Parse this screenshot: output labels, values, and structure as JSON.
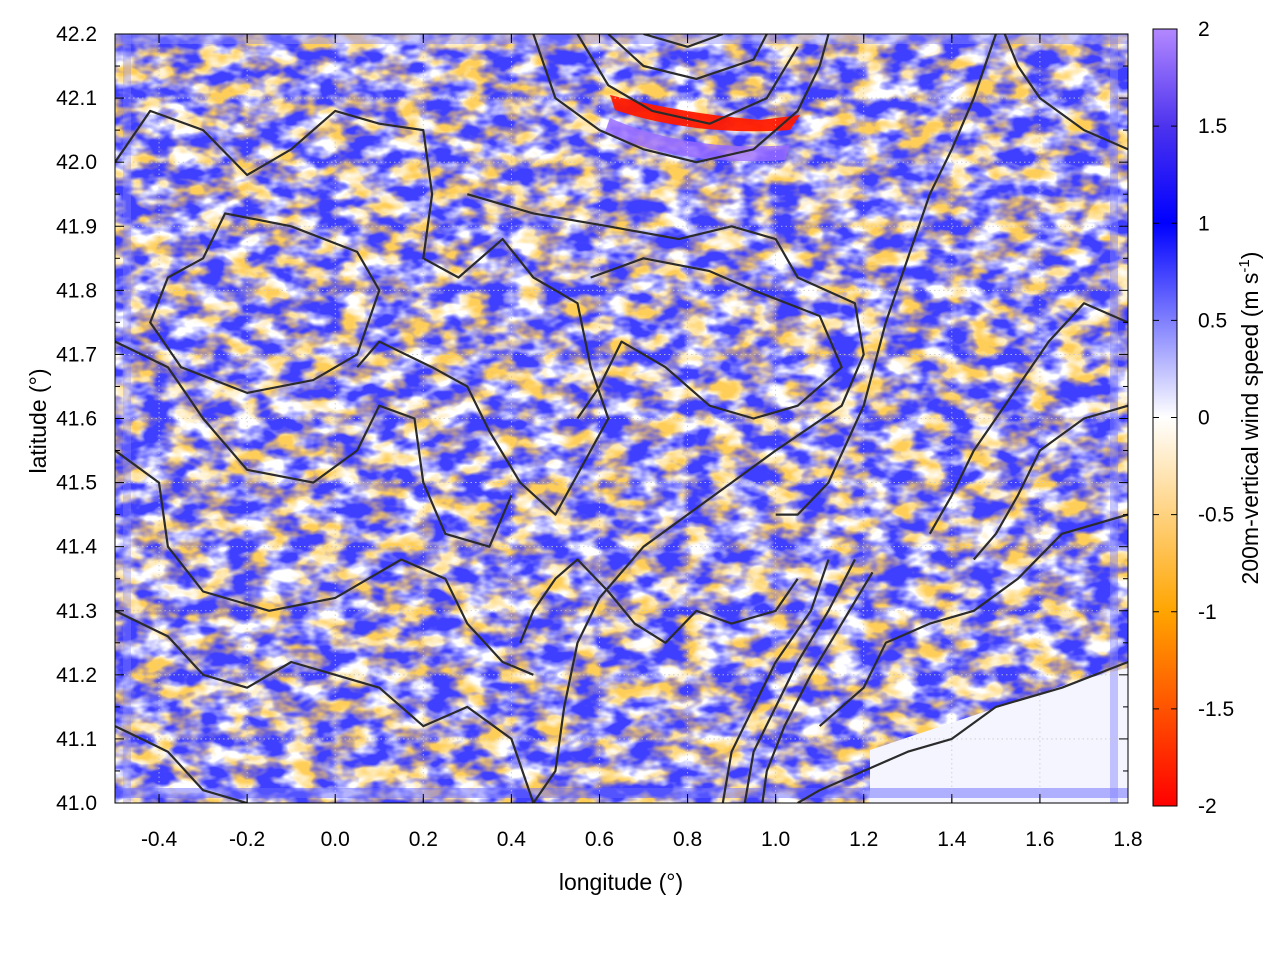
{
  "chart_data": {
    "type": "heatmap",
    "xlabel": "longitude (°)",
    "ylabel": "latitude (°)",
    "colorbar_label": "200m-vertical wind speed (m s",
    "colorbar_label_sup": "-1",
    "colorbar_label_close": ")",
    "xlim": [
      -0.5,
      1.8
    ],
    "ylim": [
      41.0,
      42.2
    ],
    "xticks": [
      -0.4,
      -0.2,
      0.0,
      0.2,
      0.4,
      0.6,
      0.8,
      1.0,
      1.2,
      1.4,
      1.6,
      1.8
    ],
    "xtick_labels": [
      "-0.4",
      "-0.2",
      "0.0",
      "0.2",
      "0.4",
      "0.6",
      "0.8",
      "1.0",
      "1.2",
      "1.4",
      "1.6",
      "1.8"
    ],
    "yticks": [
      41.0,
      41.1,
      41.2,
      41.3,
      41.4,
      41.5,
      41.6,
      41.7,
      41.8,
      41.9,
      42.0,
      42.1,
      42.2
    ],
    "ytick_labels": [
      "41.0",
      "41.1",
      "41.2",
      "41.3",
      "41.4",
      "41.5",
      "41.6",
      "41.7",
      "41.8",
      "41.9",
      "42.0",
      "42.1",
      "42.2"
    ],
    "grid": true,
    "colorbar": {
      "range": [
        -2,
        2
      ],
      "ticks": [
        2,
        1.5,
        1,
        0.5,
        0,
        -0.5,
        -1,
        -1.5,
        -2
      ],
      "tick_labels": [
        "2",
        "1.5",
        "1",
        "0.5",
        "0",
        "-0.5",
        "-1",
        "-1.5",
        "-2"
      ],
      "stops": [
        {
          "value": 2,
          "color": "#b388ff"
        },
        {
          "value": 1.5,
          "color": "#4d33ee"
        },
        {
          "value": 1,
          "color": "#0000ff"
        },
        {
          "value": 0,
          "color": "#ffffff"
        },
        {
          "value": -1,
          "color": "#ffa500"
        },
        {
          "value": -2,
          "color": "#ff0000"
        }
      ]
    },
    "contours": [
      [
        [
          -0.5,
          42.0
        ],
        [
          -0.42,
          42.08
        ],
        [
          -0.3,
          42.05
        ],
        [
          -0.2,
          41.98
        ],
        [
          -0.1,
          42.02
        ],
        [
          0.0,
          42.08
        ],
        [
          0.1,
          42.06
        ],
        [
          0.2,
          42.05
        ],
        [
          0.22,
          41.95
        ],
        [
          0.2,
          41.85
        ],
        [
          0.28,
          41.82
        ],
        [
          0.38,
          41.88
        ],
        [
          0.45,
          41.82
        ],
        [
          0.55,
          41.78
        ],
        [
          0.58,
          41.68
        ],
        [
          0.62,
          41.6
        ],
        [
          0.58,
          41.55
        ],
        [
          0.5,
          41.45
        ],
        [
          0.42,
          41.5
        ],
        [
          0.35,
          41.58
        ],
        [
          0.3,
          41.65
        ],
        [
          0.22,
          41.68
        ],
        [
          0.1,
          41.72
        ],
        [
          0.05,
          41.68
        ]
      ],
      [
        [
          -0.1,
          41.9
        ],
        [
          -0.25,
          41.92
        ],
        [
          -0.3,
          41.85
        ],
        [
          -0.38,
          41.82
        ],
        [
          -0.42,
          41.75
        ],
        [
          -0.35,
          41.68
        ],
        [
          -0.2,
          41.64
        ],
        [
          -0.05,
          41.66
        ],
        [
          0.05,
          41.7
        ],
        [
          0.1,
          41.8
        ],
        [
          0.05,
          41.86
        ],
        [
          -0.1,
          41.9
        ]
      ],
      [
        [
          -0.5,
          41.72
        ],
        [
          -0.38,
          41.68
        ],
        [
          -0.3,
          41.6
        ],
        [
          -0.2,
          41.52
        ],
        [
          -0.05,
          41.5
        ],
        [
          0.05,
          41.55
        ],
        [
          0.1,
          41.62
        ],
        [
          0.18,
          41.6
        ],
        [
          0.2,
          41.5
        ],
        [
          0.25,
          41.42
        ],
        [
          0.35,
          41.4
        ],
        [
          0.4,
          41.48
        ]
      ],
      [
        [
          -0.5,
          41.55
        ],
        [
          -0.4,
          41.5
        ],
        [
          -0.38,
          41.4
        ],
        [
          -0.3,
          41.33
        ],
        [
          -0.15,
          41.3
        ],
        [
          0.0,
          41.32
        ],
        [
          0.15,
          41.38
        ],
        [
          0.25,
          41.35
        ],
        [
          0.3,
          41.28
        ],
        [
          0.38,
          41.22
        ],
        [
          0.45,
          41.2
        ]
      ],
      [
        [
          -0.5,
          41.3
        ],
        [
          -0.38,
          41.26
        ],
        [
          -0.3,
          41.2
        ],
        [
          -0.2,
          41.18
        ],
        [
          -0.1,
          41.22
        ],
        [
          0.0,
          41.2
        ],
        [
          0.1,
          41.18
        ],
        [
          0.2,
          41.12
        ],
        [
          0.3,
          41.15
        ],
        [
          0.4,
          41.1
        ],
        [
          0.45,
          41.0
        ]
      ],
      [
        [
          -0.5,
          41.12
        ],
        [
          -0.38,
          41.08
        ],
        [
          -0.3,
          41.02
        ],
        [
          -0.2,
          41.0
        ]
      ],
      [
        [
          0.3,
          41.95
        ],
        [
          0.45,
          41.92
        ],
        [
          0.62,
          41.9
        ],
        [
          0.78,
          41.88
        ],
        [
          0.9,
          41.9
        ],
        [
          1.0,
          41.88
        ],
        [
          1.05,
          41.82
        ],
        [
          1.18,
          41.78
        ],
        [
          1.2,
          41.7
        ],
        [
          1.15,
          41.62
        ],
        [
          1.0,
          41.55
        ],
        [
          0.9,
          41.5
        ],
        [
          0.8,
          41.45
        ],
        [
          0.7,
          41.4
        ],
        [
          0.6,
          41.32
        ],
        [
          0.55,
          41.25
        ],
        [
          0.52,
          41.15
        ],
        [
          0.5,
          41.05
        ],
        [
          0.45,
          41.0
        ]
      ],
      [
        [
          0.58,
          41.82
        ],
        [
          0.7,
          41.85
        ],
        [
          0.85,
          41.83
        ],
        [
          0.95,
          41.8
        ],
        [
          1.1,
          41.76
        ],
        [
          1.15,
          41.68
        ],
        [
          1.05,
          41.62
        ],
        [
          0.95,
          41.6
        ],
        [
          0.85,
          41.62
        ],
        [
          0.75,
          41.68
        ],
        [
          0.65,
          41.72
        ],
        [
          0.6,
          41.65
        ],
        [
          0.55,
          41.6
        ]
      ],
      [
        [
          0.45,
          42.2
        ],
        [
          0.5,
          42.1
        ],
        [
          0.6,
          42.05
        ],
        [
          0.7,
          42.02
        ],
        [
          0.82,
          42.0
        ],
        [
          0.95,
          42.02
        ],
        [
          1.05,
          42.08
        ],
        [
          1.1,
          42.15
        ],
        [
          1.12,
          42.2
        ]
      ],
      [
        [
          0.55,
          42.2
        ],
        [
          0.62,
          42.12
        ],
        [
          0.72,
          42.08
        ],
        [
          0.85,
          42.06
        ],
        [
          0.98,
          42.1
        ],
        [
          1.05,
          42.18
        ]
      ],
      [
        [
          0.62,
          42.2
        ],
        [
          0.7,
          42.15
        ],
        [
          0.82,
          42.13
        ],
        [
          0.95,
          42.16
        ],
        [
          0.98,
          42.2
        ]
      ],
      [
        [
          0.7,
          42.2
        ],
        [
          0.8,
          42.18
        ],
        [
          0.88,
          42.2
        ]
      ],
      [
        [
          1.05,
          41.35
        ],
        [
          1.0,
          41.3
        ],
        [
          0.9,
          41.28
        ],
        [
          0.82,
          41.3
        ],
        [
          0.75,
          41.25
        ],
        [
          0.68,
          41.28
        ],
        [
          0.62,
          41.33
        ],
        [
          0.55,
          41.38
        ],
        [
          0.5,
          41.35
        ],
        [
          0.45,
          41.3
        ],
        [
          0.42,
          41.25
        ]
      ],
      [
        [
          1.12,
          41.38
        ],
        [
          1.08,
          41.3
        ],
        [
          1.0,
          41.22
        ],
        [
          0.95,
          41.15
        ],
        [
          0.9,
          41.08
        ],
        [
          0.88,
          41.0
        ]
      ],
      [
        [
          1.18,
          41.38
        ],
        [
          1.12,
          41.3
        ],
        [
          1.05,
          41.22
        ],
        [
          1.0,
          41.15
        ],
        [
          0.95,
          41.08
        ],
        [
          0.93,
          41.0
        ]
      ],
      [
        [
          1.22,
          41.36
        ],
        [
          1.15,
          41.28
        ],
        [
          1.08,
          41.2
        ],
        [
          1.02,
          41.12
        ],
        [
          0.98,
          41.05
        ],
        [
          0.97,
          41.0
        ]
      ],
      [
        [
          1.8,
          41.22
        ],
        [
          1.65,
          41.18
        ],
        [
          1.5,
          41.15
        ],
        [
          1.4,
          41.1
        ],
        [
          1.3,
          41.08
        ],
        [
          1.2,
          41.05
        ],
        [
          1.1,
          41.02
        ],
        [
          1.05,
          41.0
        ]
      ],
      [
        [
          1.8,
          41.45
        ],
        [
          1.65,
          41.42
        ],
        [
          1.55,
          41.35
        ],
        [
          1.45,
          41.3
        ],
        [
          1.35,
          41.28
        ],
        [
          1.25,
          41.25
        ],
        [
          1.2,
          41.18
        ],
        [
          1.1,
          41.12
        ]
      ],
      [
        [
          1.5,
          42.2
        ],
        [
          1.45,
          42.1
        ],
        [
          1.4,
          42.02
        ],
        [
          1.35,
          41.95
        ],
        [
          1.3,
          41.85
        ],
        [
          1.25,
          41.75
        ],
        [
          1.2,
          41.62
        ],
        [
          1.12,
          41.5
        ],
        [
          1.05,
          41.45
        ],
        [
          1.0,
          41.45
        ]
      ],
      [
        [
          1.8,
          41.75
        ],
        [
          1.7,
          41.78
        ],
        [
          1.62,
          41.72
        ],
        [
          1.55,
          41.65
        ],
        [
          1.5,
          41.6
        ],
        [
          1.45,
          41.55
        ],
        [
          1.4,
          41.48
        ],
        [
          1.35,
          41.42
        ]
      ],
      [
        [
          1.8,
          41.62
        ],
        [
          1.7,
          41.6
        ],
        [
          1.6,
          41.55
        ],
        [
          1.55,
          41.48
        ],
        [
          1.5,
          41.42
        ],
        [
          1.45,
          41.38
        ]
      ],
      [
        [
          1.8,
          42.02
        ],
        [
          1.7,
          42.05
        ],
        [
          1.6,
          42.1
        ],
        [
          1.55,
          42.15
        ],
        [
          1.52,
          42.2
        ]
      ]
    ]
  }
}
